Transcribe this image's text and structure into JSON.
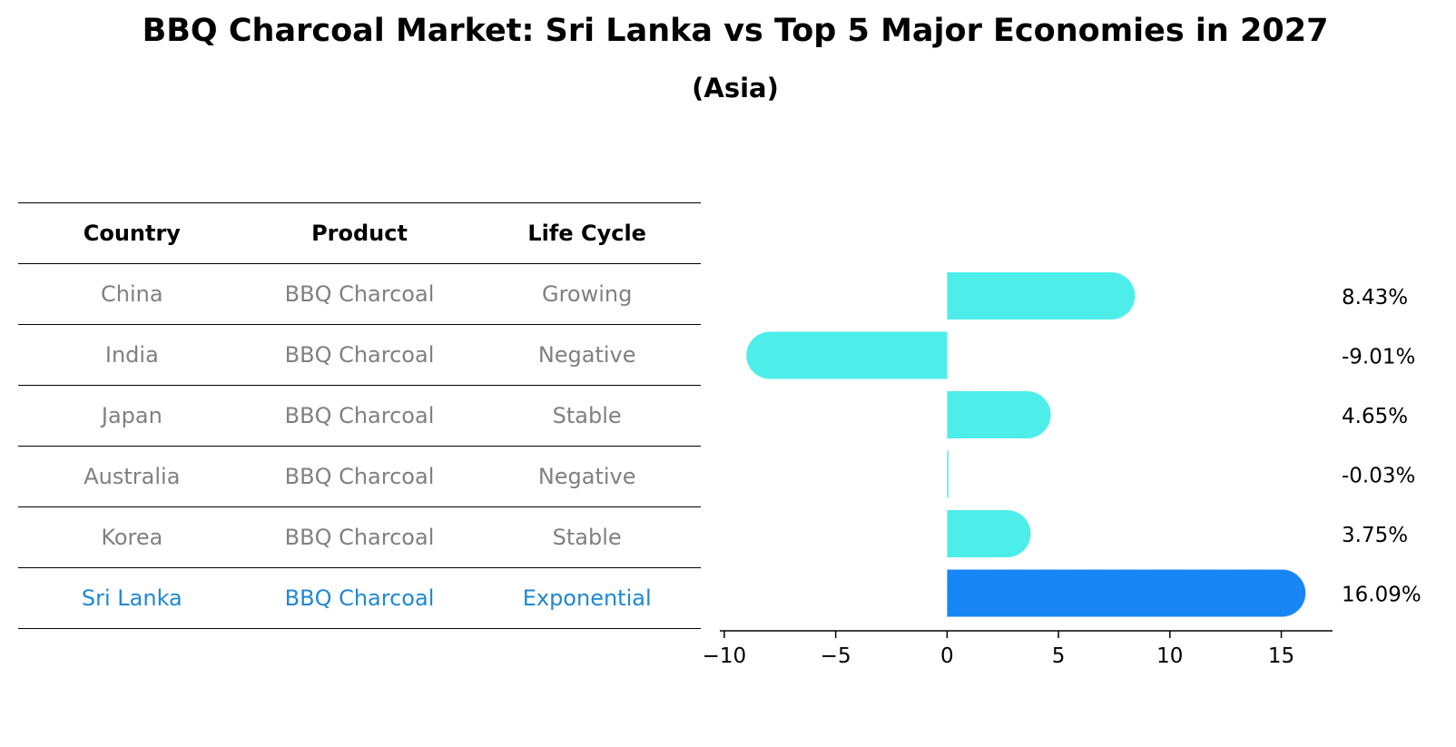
{
  "header": {
    "title": "BBQ Charcoal Market: Sri Lanka vs Top 5 Major Economies in 2027",
    "subtitle": "(Asia)"
  },
  "table": {
    "columns": [
      "Country",
      "Product",
      "Life Cycle"
    ],
    "rows": [
      {
        "country": "China",
        "product": "BBQ Charcoal",
        "life_cycle": "Growing"
      },
      {
        "country": "India",
        "product": "BBQ Charcoal",
        "life_cycle": "Negative"
      },
      {
        "country": "Japan",
        "product": "BBQ Charcoal",
        "life_cycle": "Stable"
      },
      {
        "country": "Australia",
        "product": "BBQ Charcoal",
        "life_cycle": "Negative"
      },
      {
        "country": "Korea",
        "product": "BBQ Charcoal",
        "life_cycle": "Stable"
      },
      {
        "country": "Sri Lanka",
        "product": "BBQ Charcoal",
        "life_cycle": "Exponential"
      }
    ]
  },
  "chart_data": {
    "type": "bar",
    "orientation": "horizontal",
    "title": "BBQ Charcoal Market: Sri Lanka vs Top 5 Major Economies in 2027",
    "subtitle": "(Asia)",
    "categories": [
      "China",
      "India",
      "Japan",
      "Australia",
      "Korea",
      "Sri Lanka"
    ],
    "values": [
      8.43,
      -9.01,
      4.65,
      -0.03,
      3.75,
      16.09
    ],
    "labels": [
      "8.43%",
      "-9.01%",
      "4.65%",
      "-0.03%",
      "3.75%",
      "16.09%"
    ],
    "xlim": [
      -10.2,
      17.3
    ],
    "xticks": [
      -10,
      -5,
      0,
      5,
      10,
      15
    ],
    "xtick_labels": [
      "−10",
      "−5",
      "0",
      "5",
      "10",
      "15"
    ],
    "colors": {
      "default": "#4deeea",
      "highlight": "#1785f4"
    },
    "highlight_category": "Sri Lanka"
  }
}
